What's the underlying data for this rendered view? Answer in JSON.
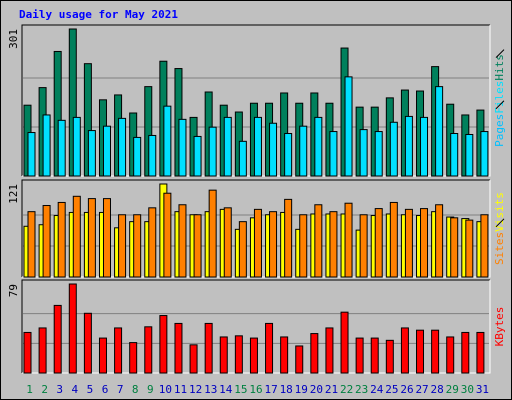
{
  "chart_data": {
    "type": "bar",
    "title": "Daily usage for May 2021",
    "categories": [
      "1",
      "2",
      "3",
      "4",
      "5",
      "6",
      "7",
      "8",
      "9",
      "10",
      "11",
      "12",
      "13",
      "14",
      "15",
      "16",
      "17",
      "18",
      "19",
      "20",
      "21",
      "22",
      "23",
      "24",
      "25",
      "26",
      "27",
      "28",
      "29",
      "30",
      "31"
    ],
    "category_colors": [
      "#008040",
      "#008040",
      "#0000c0",
      "#0000c0",
      "#0000c0",
      "#0000c0",
      "#0000c0",
      "#008040",
      "#008040",
      "#0000c0",
      "#0000c0",
      "#0000c0",
      "#0000c0",
      "#0000c0",
      "#008040",
      "#008040",
      "#0000c0",
      "#0000c0",
      "#0000c0",
      "#0000c0",
      "#0000c0",
      "#008040",
      "#008040",
      "#0000c0",
      "#0000c0",
      "#0000c0",
      "#0000c0",
      "#0000c0",
      "#008040",
      "#008040",
      "#0000c0"
    ],
    "panels": [
      {
        "ylim": [
          0,
          301
        ],
        "yticks": [
          301
        ],
        "grid": true,
        "series": [
          {
            "name": "Pages",
            "color": "#00c0ff",
            "values": [
              0,
              0,
              0,
              0,
              0,
              0,
              0,
              0,
              0,
              0,
              0,
              0,
              0,
              0,
              0,
              0,
              0,
              0,
              0,
              0,
              0,
              0,
              0,
              0,
              0,
              0,
              0,
              0,
              0,
              0,
              0
            ]
          },
          {
            "name": "Files",
            "color": "#00e0ff",
            "values": [
              89,
              125,
              114,
              120,
              93,
              102,
              118,
              79,
              83,
              143,
              116,
              81,
              100,
              120,
              71,
              120,
              108,
              87,
              102,
              120,
              91,
              203,
              95,
              91,
              110,
              122,
              120,
              183,
              87,
              85,
              91
            ]
          },
          {
            "name": "Hits",
            "color": "#00805c",
            "values": [
              145,
              181,
              255,
              301,
              230,
              156,
              166,
              129,
              183,
              235,
              220,
              120,
              172,
              145,
              131,
              149,
              149,
              170,
              149,
              170,
              149,
              262,
              141,
              141,
              160,
              176,
              174,
              224,
              147,
              125,
              135
            ]
          }
        ]
      },
      {
        "ylim": [
          0,
          121
        ],
        "yticks": [
          121
        ],
        "grid": true,
        "series": [
          {
            "name": "Sites",
            "color": "#ff8000",
            "values": [
              85,
              93,
              97,
              105,
              102,
              102,
              81,
              81,
              90,
              109,
              94,
              81,
              113,
              90,
              72,
              88,
              85,
              101,
              81,
              94,
              85,
              96,
              81,
              89,
              97,
              88,
              89,
              94,
              77,
              74,
              81
            ]
          },
          {
            "name": "Visits",
            "color": "#ffff00",
            "values": [
              66,
              68,
              80,
              84,
              84,
              84,
              64,
              72,
              72,
              121,
              85,
              81,
              85,
              88,
              62,
              77,
              81,
              84,
              62,
              82,
              82,
              82,
              61,
              80,
              82,
              81,
              80,
              85,
              78,
              76,
              72
            ]
          }
        ]
      },
      {
        "ylim": [
          0,
          79
        ],
        "yticks": [
          79
        ],
        "grid": true,
        "series": [
          {
            "name": "KBytes",
            "color": "#ff0000",
            "values": [
              36,
              40,
              60,
              79,
              53,
              31,
              40,
              27,
              41,
              51,
              44,
              25,
              44,
              32,
              33,
              31,
              44,
              32,
              24,
              35,
              40,
              54,
              31,
              31,
              29,
              40,
              38,
              38,
              32,
              36,
              36
            ]
          }
        ]
      }
    ]
  }
}
